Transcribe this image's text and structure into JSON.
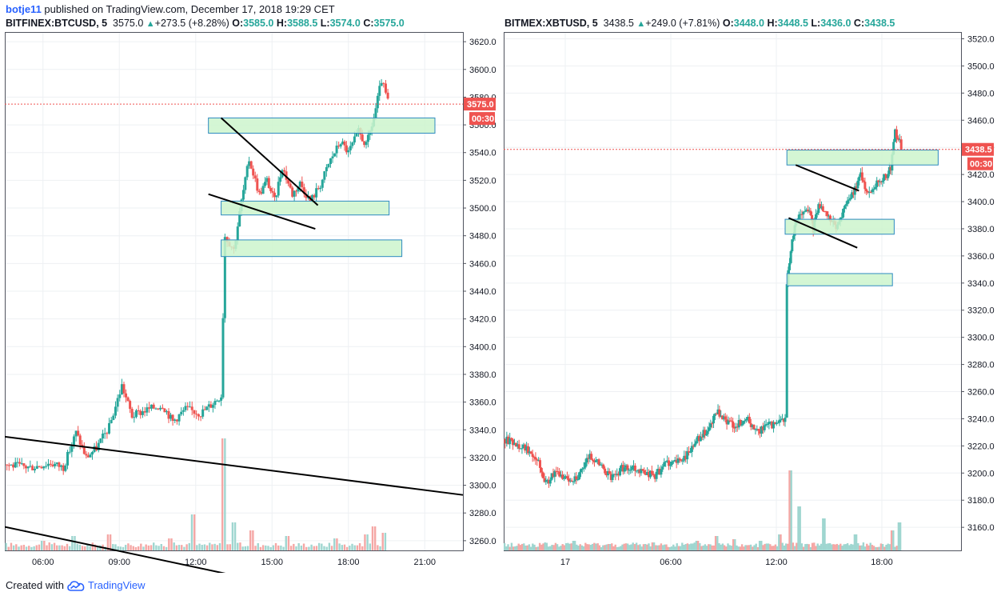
{
  "publication": {
    "author": "botje11",
    "text": "published on TradingView.com, December 17, 2018 19:29 CET"
  },
  "footer": {
    "created_with": "Created with",
    "brand": "TradingView",
    "logo_icon": "tradingview-cloud-icon"
  },
  "colors": {
    "up": "#26a69a",
    "down": "#ef5350",
    "volume_up": "#9fd6d0",
    "volume_down": "#f5a7a5",
    "zone_fill": "#ccf5cc",
    "zone_stroke": "#2e8bc0",
    "price_line": "#ef5350"
  },
  "chart_data": [
    {
      "type": "candlestick",
      "symbol": "BITFINEX:BTCUSD, 5",
      "last": "3575.0",
      "change": "+273.5 (+8.28%)",
      "ohlc_labels": {
        "o": "O:",
        "h": "H:",
        "l": "L:",
        "c": "C:"
      },
      "ohlc": {
        "o": "3585.0",
        "h": "3588.5",
        "l": "3574.0",
        "c": "3575.0"
      },
      "price_label": "3575.0",
      "countdown": "00:30",
      "x_ticks": [
        "06:00",
        "09:00",
        "12:00",
        "15:00",
        "18:00",
        "21:00"
      ],
      "x_tick_hours": [
        6,
        9,
        12,
        15,
        18,
        21
      ],
      "x_range_hours": [
        4.5,
        22.5
      ],
      "y_ticks": [
        "3260.0",
        "3280.0",
        "3300.0",
        "3320.0",
        "3340.0",
        "3360.0",
        "3380.0",
        "3400.0",
        "3420.0",
        "3440.0",
        "3460.0",
        "3480.0",
        "3500.0",
        "3520.0",
        "3540.0",
        "3560.0",
        "3580.0",
        "3600.0",
        "3620.0"
      ],
      "y_range": [
        3253,
        3627
      ],
      "last_price": 3575.0,
      "path": [
        [
          4.5,
          3315
        ],
        [
          5.5,
          3313
        ],
        [
          6.3,
          3316
        ],
        [
          6.8,
          3313
        ],
        [
          7.3,
          3338
        ],
        [
          7.7,
          3320
        ],
        [
          8.1,
          3327
        ],
        [
          8.6,
          3342
        ],
        [
          9.1,
          3372
        ],
        [
          9.5,
          3350
        ],
        [
          10.0,
          3354
        ],
        [
          10.7,
          3358
        ],
        [
          11.1,
          3346
        ],
        [
          11.6,
          3355
        ],
        [
          12.2,
          3352
        ],
        [
          12.6,
          3358
        ],
        [
          13.0,
          3365
        ],
        [
          13.15,
          3480
        ],
        [
          13.5,
          3470
        ],
        [
          13.8,
          3505
        ],
        [
          14.1,
          3535
        ],
        [
          14.5,
          3510
        ],
        [
          14.8,
          3520
        ],
        [
          15.1,
          3505
        ],
        [
          15.4,
          3530
        ],
        [
          15.8,
          3510
        ],
        [
          16.1,
          3518
        ],
        [
          16.5,
          3505
        ],
        [
          16.9,
          3517
        ],
        [
          17.3,
          3535
        ],
        [
          17.7,
          3548
        ],
        [
          18.0,
          3540
        ],
        [
          18.4,
          3555
        ],
        [
          18.7,
          3545
        ],
        [
          19.0,
          3565
        ],
        [
          19.3,
          3592
        ],
        [
          19.55,
          3577
        ]
      ],
      "volumes": [
        [
          6.0,
          12
        ],
        [
          7.2,
          18
        ],
        [
          8.6,
          20
        ],
        [
          11.0,
          15
        ],
        [
          11.9,
          45
        ],
        [
          13.1,
          140
        ],
        [
          13.5,
          35
        ],
        [
          14.2,
          25
        ],
        [
          15.6,
          18
        ],
        [
          17.5,
          15
        ],
        [
          18.7,
          20
        ],
        [
          19.0,
          30
        ],
        [
          19.4,
          22
        ]
      ],
      "zones": [
        [
          12.5,
          3565,
          21.4,
          3554
        ],
        [
          13.0,
          3505,
          19.6,
          3495
        ],
        [
          13.0,
          3477,
          20.1,
          3465
        ]
      ],
      "lines": [
        [
          13.0,
          3565,
          16.8,
          3502
        ],
        [
          12.5,
          3510,
          16.7,
          3485
        ],
        [
          4.5,
          3335,
          22.5,
          3293
        ],
        [
          4.5,
          3270,
          22.5,
          3200
        ]
      ]
    },
    {
      "type": "candlestick",
      "symbol": "BITMEX:XBTUSD, 5",
      "last": "3438.5",
      "change": "+249.0 (+7.81%)",
      "ohlc_labels": {
        "o": "O:",
        "h": "H:",
        "l": "L:",
        "c": "C:"
      },
      "ohlc": {
        "o": "3448.0",
        "h": "3448.5",
        "l": "3436.0",
        "c": "3438.5"
      },
      "price_label": "3438.5",
      "countdown": "00:30",
      "x_ticks": [
        "17",
        "06:00",
        "12:00",
        "18:00"
      ],
      "x_tick_hours": [
        0,
        6,
        12,
        18
      ],
      "x_range_hours": [
        -3.5,
        22.5
      ],
      "y_ticks": [
        "3160.0",
        "3180.0",
        "3200.0",
        "3220.0",
        "3240.0",
        "3260.0",
        "3280.0",
        "3300.0",
        "3320.0",
        "3340.0",
        "3360.0",
        "3380.0",
        "3400.0",
        "3420.0",
        "3440.0",
        "3460.0",
        "3480.0",
        "3500.0",
        "3520.0"
      ],
      "y_range": [
        3143,
        3525
      ],
      "last_price": 3438.5,
      "path": [
        [
          -3.5,
          3225
        ],
        [
          -2.8,
          3222
        ],
        [
          -2.2,
          3218
        ],
        [
          -1.6,
          3212
        ],
        [
          -1.1,
          3192
        ],
        [
          -0.6,
          3200
        ],
        [
          0.2,
          3195
        ],
        [
          0.8,
          3198
        ],
        [
          1.4,
          3213
        ],
        [
          2.0,
          3206
        ],
        [
          2.6,
          3196
        ],
        [
          3.2,
          3203
        ],
        [
          3.8,
          3205
        ],
        [
          4.4,
          3201
        ],
        [
          5.1,
          3198
        ],
        [
          5.8,
          3208
        ],
        [
          6.5,
          3208
        ],
        [
          7.2,
          3218
        ],
        [
          7.7,
          3228
        ],
        [
          8.1,
          3230
        ],
        [
          8.6,
          3245
        ],
        [
          9.1,
          3238
        ],
        [
          9.7,
          3235
        ],
        [
          10.3,
          3240
        ],
        [
          10.9,
          3230
        ],
        [
          11.5,
          3235
        ],
        [
          12.1,
          3236
        ],
        [
          12.5,
          3240
        ],
        [
          12.6,
          3340
        ],
        [
          12.9,
          3370
        ],
        [
          13.2,
          3390
        ],
        [
          13.8,
          3395
        ],
        [
          14.1,
          3380
        ],
        [
          14.4,
          3398
        ],
        [
          14.9,
          3392
        ],
        [
          15.4,
          3380
        ],
        [
          15.8,
          3393
        ],
        [
          16.3,
          3405
        ],
        [
          16.8,
          3420
        ],
        [
          17.2,
          3405
        ],
        [
          17.8,
          3415
        ],
        [
          18.2,
          3418
        ],
        [
          18.5,
          3425
        ],
        [
          18.75,
          3452
        ],
        [
          19.1,
          3440
        ]
      ],
      "volumes": [
        [
          0.5,
          12
        ],
        [
          2.5,
          8
        ],
        [
          5.0,
          10
        ],
        [
          7.5,
          12
        ],
        [
          8.6,
          18
        ],
        [
          9.6,
          14
        ],
        [
          11.1,
          12
        ],
        [
          12.2,
          20
        ],
        [
          12.8,
          100
        ],
        [
          13.3,
          55
        ],
        [
          14.7,
          40
        ],
        [
          16.5,
          20
        ],
        [
          18.6,
          25
        ],
        [
          19.0,
          35
        ]
      ],
      "zones": [
        [
          12.6,
          3438,
          21.2,
          3427
        ],
        [
          12.5,
          3387,
          18.7,
          3376
        ],
        [
          12.6,
          3347,
          18.6,
          3338
        ]
      ],
      "lines": [
        [
          13.1,
          3427,
          16.7,
          3408
        ],
        [
          12.7,
          3388,
          16.6,
          3366
        ]
      ]
    }
  ]
}
